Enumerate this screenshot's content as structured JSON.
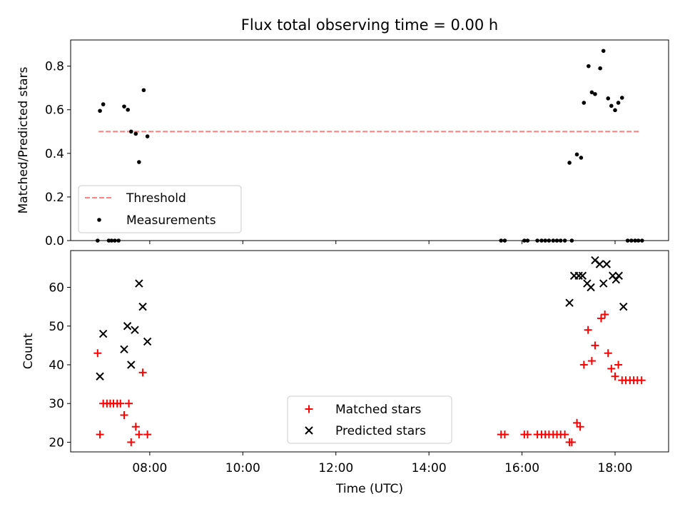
{
  "title": "Flux total observing time = 0.00 h",
  "chart_data": [
    {
      "type": "scatter",
      "panel": "top",
      "ylabel": "Matched/Predicted stars",
      "xlim": [
        6.3,
        19.15
      ],
      "ylim": [
        0,
        0.92
      ],
      "yticks": [
        0.0,
        0.2,
        0.4,
        0.6,
        0.8
      ],
      "ytick_labels": [
        "0.0",
        "0.2",
        "0.4",
        "0.6",
        "0.8"
      ],
      "threshold": {
        "name": "Threshold",
        "value": 0.5,
        "x_range": [
          6.9,
          18.55
        ],
        "color": "#ff8080"
      },
      "series": [
        {
          "name": "Measurements",
          "color": "#000000",
          "points": [
            [
              6.88,
              0.0
            ],
            [
              6.93,
              0.595
            ],
            [
              7.0,
              0.625
            ],
            [
              7.12,
              0.0
            ],
            [
              7.18,
              0.0
            ],
            [
              7.25,
              0.0
            ],
            [
              7.33,
              0.0
            ],
            [
              7.45,
              0.615
            ],
            [
              7.53,
              0.6
            ],
            [
              7.6,
              0.5
            ],
            [
              7.7,
              0.49
            ],
            [
              7.77,
              0.36
            ],
            [
              7.87,
              0.69
            ],
            [
              7.95,
              0.478
            ],
            [
              15.55,
              0.0
            ],
            [
              15.63,
              0.0
            ],
            [
              16.05,
              0.0
            ],
            [
              16.12,
              0.0
            ],
            [
              16.33,
              0.0
            ],
            [
              16.42,
              0.0
            ],
            [
              16.5,
              0.0
            ],
            [
              16.58,
              0.0
            ],
            [
              16.67,
              0.0
            ],
            [
              16.75,
              0.0
            ],
            [
              16.83,
              0.0
            ],
            [
              16.92,
              0.0
            ],
            [
              17.02,
              0.357
            ],
            [
              17.07,
              0.0
            ],
            [
              17.18,
              0.395
            ],
            [
              17.27,
              0.38
            ],
            [
              17.33,
              0.632
            ],
            [
              17.43,
              0.8
            ],
            [
              17.5,
              0.68
            ],
            [
              17.57,
              0.672
            ],
            [
              17.68,
              0.79
            ],
            [
              17.75,
              0.87
            ],
            [
              17.85,
              0.652
            ],
            [
              17.92,
              0.618
            ],
            [
              18.0,
              0.598
            ],
            [
              18.07,
              0.632
            ],
            [
              18.15,
              0.655
            ],
            [
              18.27,
              0.0
            ],
            [
              18.35,
              0.0
            ],
            [
              18.43,
              0.0
            ],
            [
              18.5,
              0.0
            ],
            [
              18.58,
              0.0
            ]
          ]
        }
      ],
      "legend": {
        "position": "lower-left"
      }
    },
    {
      "type": "scatter",
      "panel": "bottom",
      "xlabel": "Time (UTC)",
      "ylabel": "Count",
      "xlim": [
        6.3,
        19.15
      ],
      "ylim": [
        17.5,
        69.5
      ],
      "xticks": [
        8,
        10,
        12,
        14,
        16,
        18
      ],
      "xtick_labels": [
        "08:00",
        "10:00",
        "12:00",
        "14:00",
        "16:00",
        "18:00"
      ],
      "yticks": [
        20,
        30,
        40,
        50,
        60
      ],
      "ytick_labels": [
        "20",
        "30",
        "40",
        "50",
        "60"
      ],
      "series": [
        {
          "name": "Matched stars",
          "marker": "plus",
          "color": "#ff0000",
          "points": [
            [
              6.88,
              43
            ],
            [
              6.93,
              22
            ],
            [
              7.0,
              30
            ],
            [
              7.08,
              30
            ],
            [
              7.15,
              30
            ],
            [
              7.22,
              30
            ],
            [
              7.3,
              30
            ],
            [
              7.37,
              30
            ],
            [
              7.45,
              27
            ],
            [
              7.55,
              30
            ],
            [
              7.6,
              20
            ],
            [
              7.7,
              24
            ],
            [
              7.77,
              22
            ],
            [
              7.85,
              38
            ],
            [
              7.95,
              22
            ],
            [
              15.55,
              22
            ],
            [
              15.63,
              22
            ],
            [
              16.05,
              22
            ],
            [
              16.12,
              22
            ],
            [
              16.33,
              22
            ],
            [
              16.42,
              22
            ],
            [
              16.5,
              22
            ],
            [
              16.58,
              22
            ],
            [
              16.67,
              22
            ],
            [
              16.75,
              22
            ],
            [
              16.83,
              22
            ],
            [
              16.92,
              22
            ],
            [
              17.02,
              20
            ],
            [
              17.07,
              20
            ],
            [
              17.18,
              25
            ],
            [
              17.25,
              24
            ],
            [
              17.33,
              40
            ],
            [
              17.42,
              49
            ],
            [
              17.5,
              41
            ],
            [
              17.57,
              45
            ],
            [
              17.7,
              52
            ],
            [
              17.78,
              53
            ],
            [
              17.85,
              43
            ],
            [
              17.92,
              39
            ],
            [
              18.0,
              37
            ],
            [
              18.07,
              40
            ],
            [
              18.15,
              36
            ],
            [
              18.23,
              36
            ],
            [
              18.32,
              36
            ],
            [
              18.4,
              36
            ],
            [
              18.48,
              36
            ],
            [
              18.57,
              36
            ]
          ]
        },
        {
          "name": "Predicted stars",
          "marker": "x",
          "color": "#000000",
          "points": [
            [
              6.93,
              37
            ],
            [
              7.0,
              48
            ],
            [
              7.45,
              44
            ],
            [
              7.52,
              50
            ],
            [
              7.6,
              40
            ],
            [
              7.68,
              49
            ],
            [
              7.77,
              61
            ],
            [
              7.85,
              55
            ],
            [
              7.95,
              46
            ],
            [
              17.02,
              56
            ],
            [
              17.12,
              63
            ],
            [
              17.22,
              63
            ],
            [
              17.3,
              63
            ],
            [
              17.4,
              61
            ],
            [
              17.48,
              60
            ],
            [
              17.57,
              67
            ],
            [
              17.67,
              66
            ],
            [
              17.75,
              61
            ],
            [
              17.82,
              66
            ],
            [
              17.95,
              63
            ],
            [
              18.02,
              62
            ],
            [
              18.08,
              63
            ],
            [
              18.18,
              55
            ]
          ]
        }
      ],
      "legend": {
        "position": "lower-center"
      }
    }
  ]
}
